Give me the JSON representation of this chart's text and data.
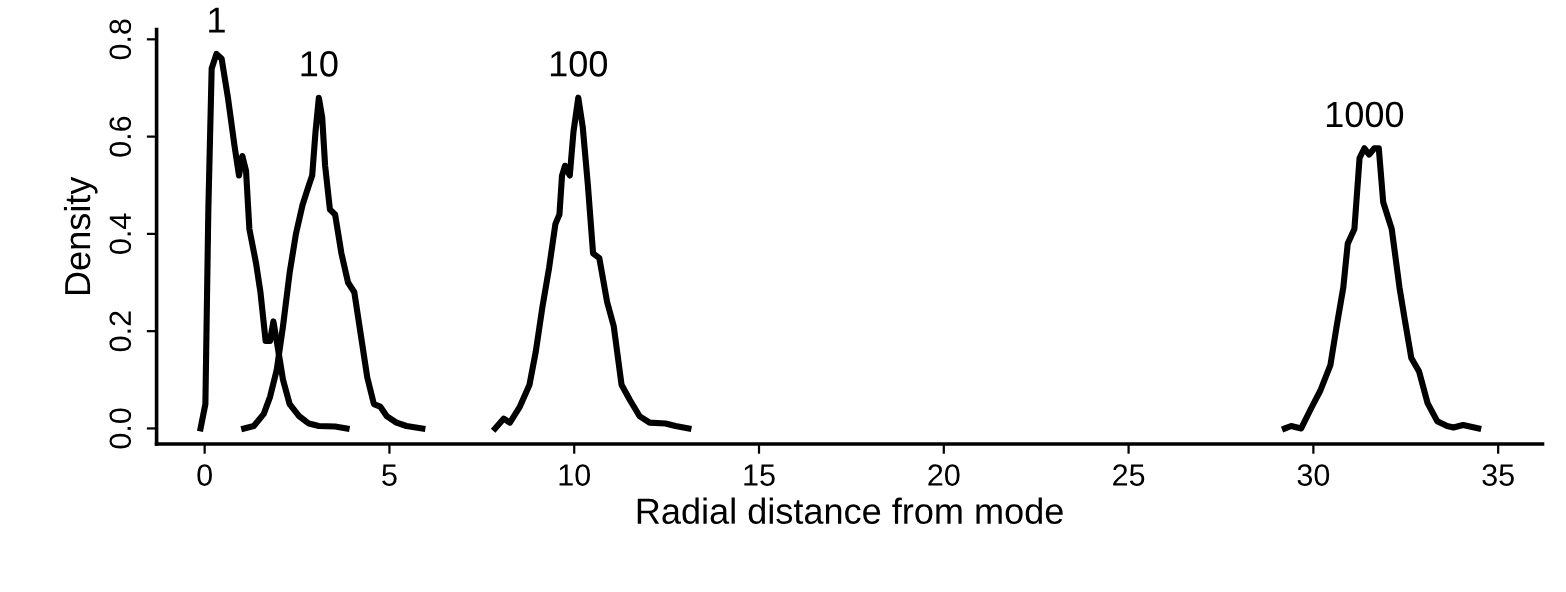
{
  "chart_data": {
    "type": "line",
    "xlabel": "Radial distance from mode",
    "ylabel": "Density",
    "xlim": [
      -1.3,
      36.2
    ],
    "ylim": [
      -0.032,
      0.82
    ],
    "xticks": [
      0,
      5,
      10,
      15,
      20,
      25,
      30,
      35
    ],
    "yticks": [
      {
        "value": 0,
        "label": "0.0"
      },
      {
        "value": 0.2,
        "label": "0.2"
      },
      {
        "value": 0.4,
        "label": "0.4"
      },
      {
        "value": 0.6,
        "label": "0.6"
      },
      {
        "value": 0.8,
        "label": "0.8"
      }
    ],
    "grid": false,
    "legend": false,
    "line_style": "solid",
    "marker": "none",
    "series": [
      {
        "name": "1",
        "color": "#000000",
        "x": [
          -0.11,
          0.02,
          0.1,
          0.19,
          0.32,
          0.46,
          0.63,
          0.81,
          0.93,
          1.02,
          1.12,
          1.21,
          1.39,
          1.51,
          1.65,
          1.77,
          1.86,
          1.95,
          2.12,
          2.3,
          2.56,
          2.82,
          3.09,
          3.53,
          3.84
        ],
        "values": [
          0.0,
          0.05,
          0.45,
          0.74,
          0.77,
          0.76,
          0.68,
          0.58,
          0.52,
          0.56,
          0.53,
          0.41,
          0.34,
          0.28,
          0.18,
          0.18,
          0.22,
          0.18,
          0.1,
          0.05,
          0.025,
          0.01,
          0.005,
          0.004,
          0.0
        ]
      },
      {
        "name": "10",
        "color": "#000000",
        "x": [
          1.07,
          1.33,
          1.6,
          1.77,
          1.95,
          2.12,
          2.3,
          2.47,
          2.65,
          2.82,
          2.91,
          3.0,
          3.09,
          3.18,
          3.26,
          3.39,
          3.53,
          3.7,
          3.88,
          4.05,
          4.23,
          4.4,
          4.58,
          4.75,
          4.93,
          5.19,
          5.46,
          5.89
        ],
        "values": [
          0.0,
          0.005,
          0.03,
          0.065,
          0.12,
          0.21,
          0.32,
          0.4,
          0.46,
          0.5,
          0.52,
          0.61,
          0.68,
          0.64,
          0.54,
          0.45,
          0.44,
          0.36,
          0.3,
          0.28,
          0.19,
          0.105,
          0.05,
          0.045,
          0.025,
          0.012,
          0.005,
          0.0
        ]
      },
      {
        "name": "100",
        "color": "#000000",
        "x": [
          7.86,
          8.09,
          8.26,
          8.53,
          8.79,
          8.96,
          9.14,
          9.32,
          9.49,
          9.6,
          9.67,
          9.75,
          9.88,
          9.98,
          10.11,
          10.23,
          10.37,
          10.51,
          10.68,
          10.89,
          11.07,
          11.28,
          11.51,
          11.77,
          12.04,
          12.47,
          12.74,
          13.09
        ],
        "values": [
          0.0,
          0.02,
          0.012,
          0.045,
          0.09,
          0.158,
          0.25,
          0.33,
          0.42,
          0.44,
          0.52,
          0.54,
          0.52,
          0.61,
          0.68,
          0.62,
          0.5,
          0.36,
          0.35,
          0.26,
          0.21,
          0.09,
          0.058,
          0.025,
          0.012,
          0.01,
          0.005,
          0.0
        ]
      },
      {
        "name": "1000",
        "color": "#000000",
        "x": [
          29.23,
          29.4,
          29.67,
          29.93,
          30.19,
          30.46,
          30.63,
          30.81,
          30.93,
          31.11,
          31.25,
          31.38,
          31.51,
          31.65,
          31.77,
          31.89,
          32.12,
          32.33,
          32.47,
          32.65,
          32.86,
          33.09,
          33.35,
          33.62,
          33.79,
          34.05,
          34.46
        ],
        "values": [
          0.0,
          0.005,
          0.0,
          0.04,
          0.078,
          0.13,
          0.21,
          0.29,
          0.38,
          0.41,
          0.556,
          0.576,
          0.563,
          0.576,
          0.576,
          0.465,
          0.41,
          0.29,
          0.225,
          0.145,
          0.117,
          0.052,
          0.015,
          0.005,
          0.002,
          0.007,
          0.0
        ]
      }
    ]
  }
}
